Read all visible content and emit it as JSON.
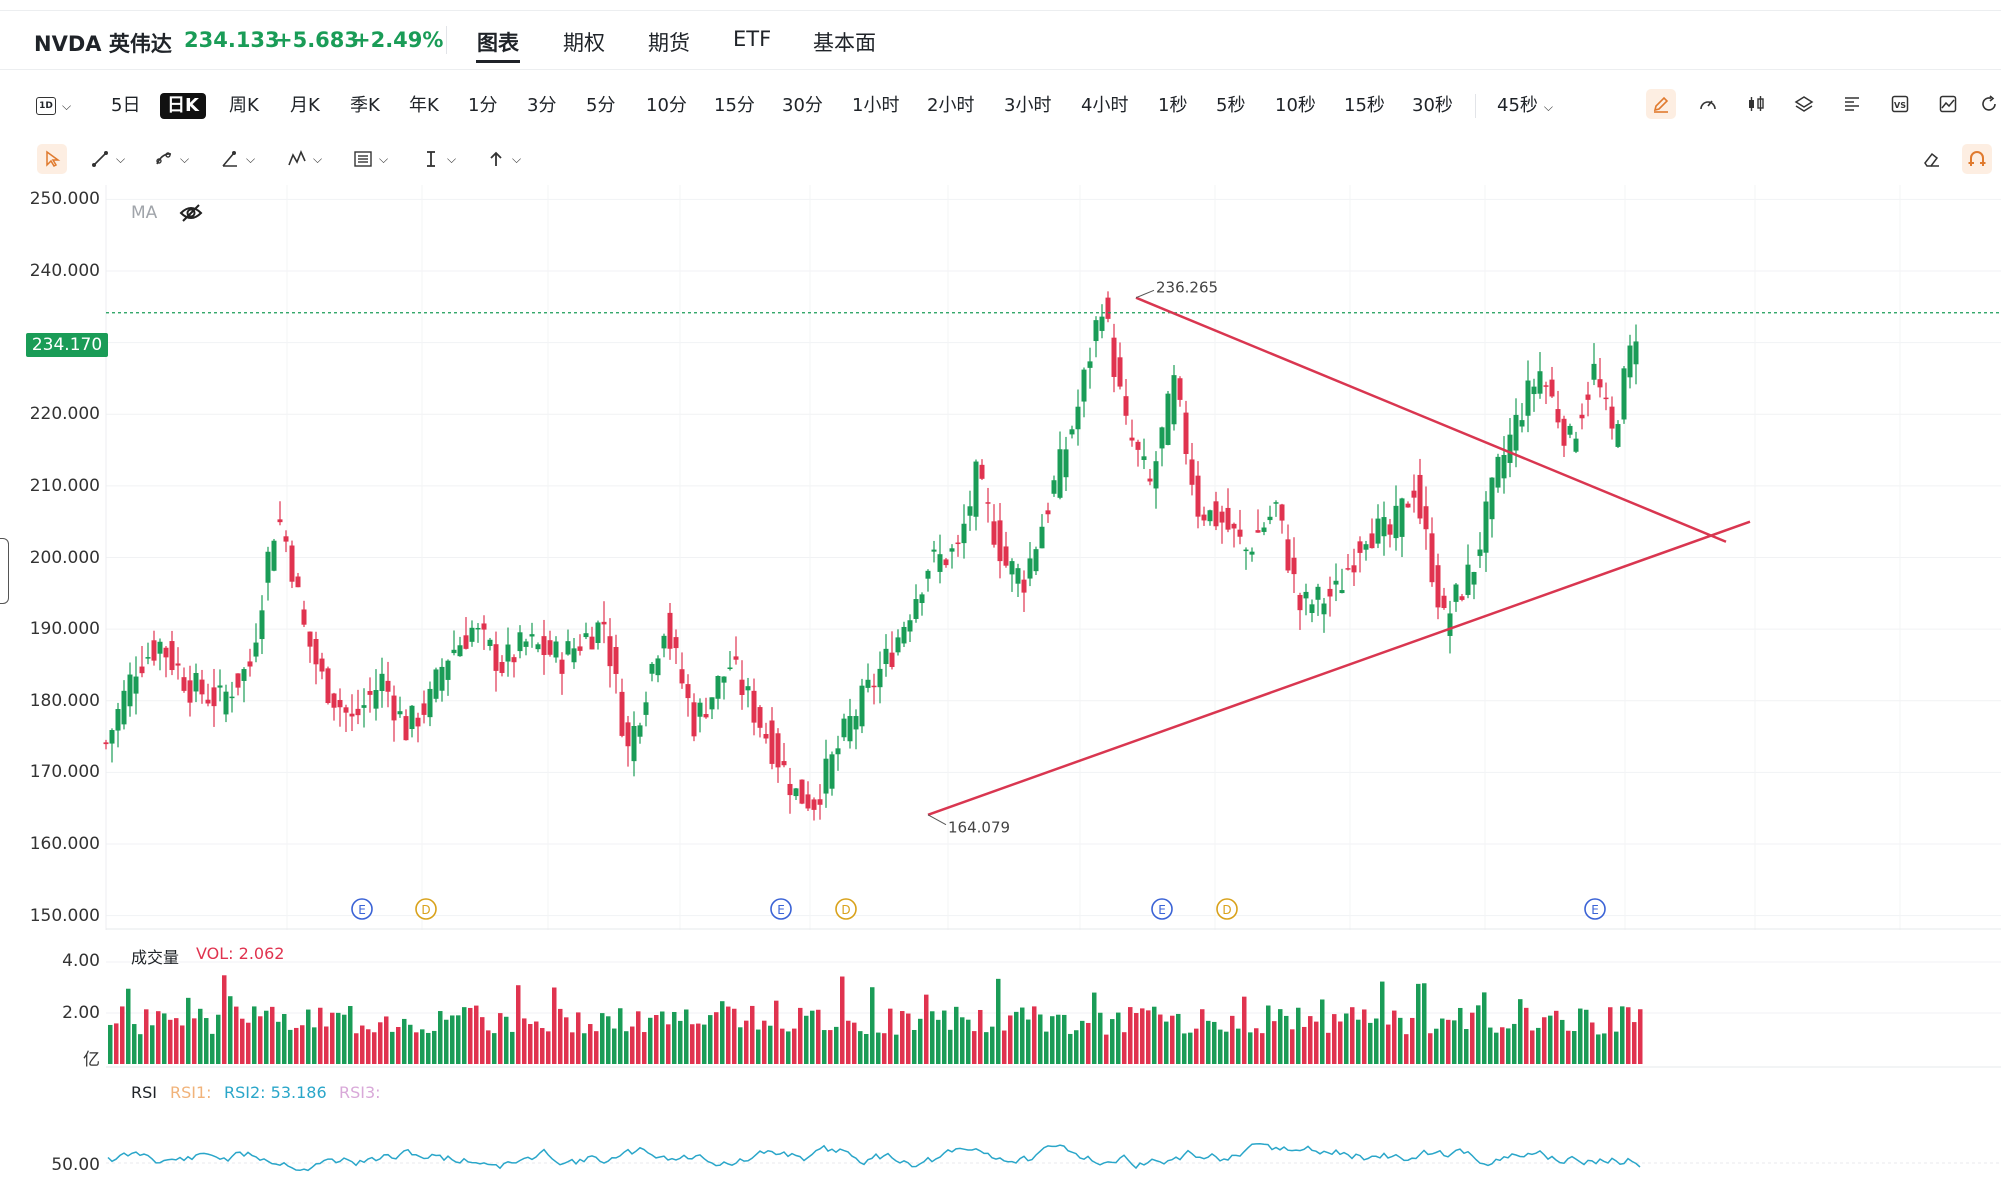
{
  "header": {
    "symbol": "NVDA 英伟达",
    "price": "234.133",
    "change": "+5.683",
    "change_pct": "+2.49%",
    "tabs": [
      "图表",
      "期权",
      "期货",
      "ETF",
      "基本面"
    ],
    "active_tab": "图表"
  },
  "toolbar": {
    "period_icon_label": "1D",
    "timeframes": [
      "5日",
      "日K",
      "周K",
      "月K",
      "季K",
      "年K",
      "1分",
      "3分",
      "5分",
      "10分",
      "15分",
      "30分",
      "1小时",
      "2小时",
      "3小时",
      "4小时",
      "1秒",
      "5秒",
      "10秒",
      "15秒",
      "30秒"
    ],
    "active_timeframe": "日K",
    "more_timeframe": "45秒",
    "right_icons": [
      "pencil-icon",
      "gauge-icon",
      "candlestick-icon",
      "layers-icon",
      "align-icon",
      "vs-icon",
      "chart-line-icon",
      "refresh-icon"
    ],
    "draw_tools": [
      "cursor-icon",
      "line-tool-icon",
      "fib-tool-icon",
      "angle-tool-icon",
      "pattern-tool-icon",
      "channel-tool-icon",
      "text-tool-icon",
      "arrow-tool-icon"
    ],
    "right_draw_icons": [
      "eraser-icon",
      "magnet-icon"
    ]
  },
  "main_chart": {
    "indicator_label": "MA",
    "y_ticks": [
      "250.000",
      "240.000",
      "230.000",
      "220.000",
      "210.000",
      "200.000",
      "190.000",
      "180.000",
      "170.000",
      "160.000",
      "150.000"
    ],
    "last_price_label": "234.170",
    "high_label": "236.265",
    "low_label": "164.079",
    "event_markers": [
      "E",
      "D",
      "E",
      "D",
      "E",
      "D",
      "E"
    ],
    "colors": {
      "up": "#1a9c57",
      "down": "#e0334f",
      "trendline": "#d93650",
      "price_line": "#1a9c57"
    }
  },
  "volume_panel": {
    "title": "成交量",
    "value_label": "VOL: 2.062",
    "y_ticks": [
      "4.00",
      "2.00"
    ],
    "unit": "亿"
  },
  "rsi_panel": {
    "title": "RSI",
    "rsi1_label": "RSI1:",
    "rsi2_label": "RSI2: 53.186",
    "rsi3_label": "RSI3:",
    "y_tick": "50.00",
    "colors": {
      "rsi1": "#f1b37a",
      "rsi2": "#2aa6c9",
      "rsi3": "#d9a9d9"
    }
  },
  "chart_data": {
    "type": "candlestick",
    "title": "NVDA 英伟达 日K",
    "ylim": [
      148,
      252
    ],
    "last_price": 234.17,
    "annotated_high": 236.265,
    "annotated_low": 164.079,
    "trendlines": [
      {
        "from": [
          0.5316,
          164.079
        ],
        "to": [
          0.9716,
          202.2
        ]
      },
      {
        "from": [
          0.6354,
          236.265
        ],
        "to": [
          0.9716,
          202.2
        ]
      }
    ],
    "rsi2_last": 53.186,
    "volume_last": 2.062
  }
}
